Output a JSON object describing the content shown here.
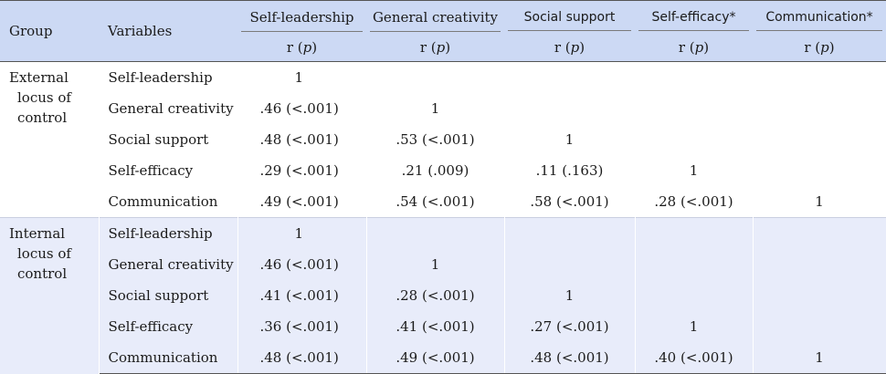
{
  "headers": {
    "group": "Group",
    "variables": "Variables",
    "columns": [
      "Self-leadership",
      "General creativity",
      "Social support",
      "Self-efficacy*",
      "Communication*"
    ],
    "stat_prefix": "r (",
    "stat_p": "p",
    "stat_suffix": ")"
  },
  "groups": [
    {
      "label_lines": [
        "External",
        "locus of",
        "control"
      ],
      "rows": [
        {
          "variable": "Self-leadership",
          "values": [
            "1",
            "",
            "",
            "",
            ""
          ]
        },
        {
          "variable": "General creativity",
          "values": [
            ".46 (<.001)",
            "1",
            "",
            "",
            ""
          ]
        },
        {
          "variable": "Social support",
          "values": [
            ".48 (<.001)",
            ".53 (<.001)",
            "1",
            "",
            ""
          ]
        },
        {
          "variable": "Self-efficacy",
          "values": [
            ".29 (<.001)",
            ".21 (.009)",
            ".11 (.163)",
            "1",
            ""
          ]
        },
        {
          "variable": "Communication",
          "values": [
            ".49 (<.001)",
            ".54 (<.001)",
            ".58 (<.001)",
            ".28 (<.001)",
            "1"
          ]
        }
      ]
    },
    {
      "label_lines": [
        "Internal",
        "locus of",
        "control"
      ],
      "rows": [
        {
          "variable": "Self-leadership",
          "values": [
            "1",
            "",
            "",
            "",
            ""
          ]
        },
        {
          "variable": "General creativity",
          "values": [
            ".46 (<.001)",
            "1",
            "",
            "",
            ""
          ]
        },
        {
          "variable": "Social support",
          "values": [
            ".41 (<.001)",
            ".28 (<.001)",
            "1",
            "",
            ""
          ]
        },
        {
          "variable": "Self-efficacy",
          "values": [
            ".36 (<.001)",
            ".41 (<.001)",
            ".27 (<.001)",
            "1",
            ""
          ]
        },
        {
          "variable": "Communication",
          "values": [
            ".48 (<.001)",
            ".49 (<.001)",
            ".48 (<.001)",
            ".40 (<.001)",
            "1"
          ]
        }
      ]
    }
  ]
}
